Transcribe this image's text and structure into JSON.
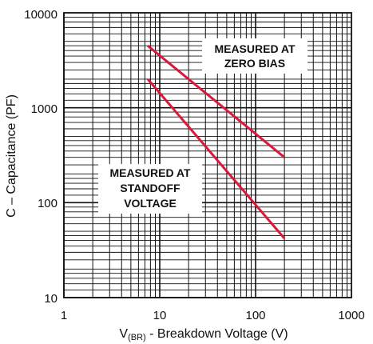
{
  "chart_data": {
    "type": "line",
    "xscale": "log",
    "yscale": "log",
    "xlim": [
      1,
      1000
    ],
    "ylim": [
      10,
      10000
    ],
    "grid": true,
    "x_ticks": [
      "1",
      "10",
      "100",
      "1000"
    ],
    "y_ticks": [
      "10",
      "100",
      "1000",
      "10000"
    ],
    "xlabel": {
      "main": "V",
      "sub": "(BR)",
      "rest": " - Breakdown Voltage (V)"
    },
    "ylabel": "C – Capacitance (PF)",
    "line_color": "#d8193a",
    "series": [
      {
        "name": "MEASURED AT ZERO BIAS",
        "x": [
          7.5,
          200
        ],
        "y": [
          4500,
          300
        ]
      },
      {
        "name": "MEASURED AT STANDOFF VOLTAGE",
        "x": [
          7.5,
          200
        ],
        "y": [
          2000,
          42
        ]
      }
    ],
    "annotations": [
      {
        "lines": [
          "MEASURED AT",
          "ZERO BIAS"
        ]
      },
      {
        "lines": [
          "MEASURED AT",
          "STANDOFF",
          "VOLTAGE"
        ]
      }
    ]
  }
}
